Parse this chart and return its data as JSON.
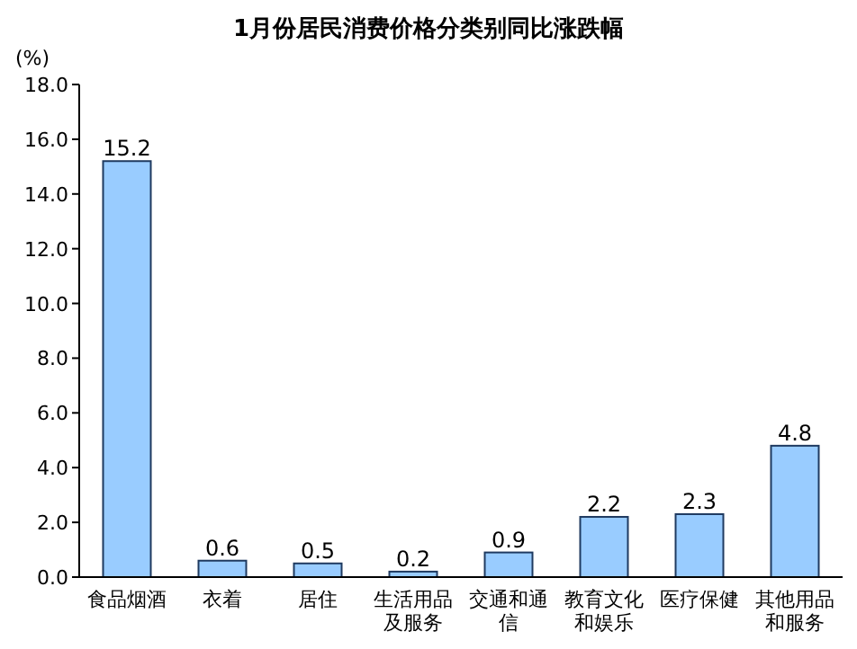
{
  "chart_data": {
    "type": "bar",
    "title": "1月份居民消费价格分类别同比涨跌幅",
    "ylabel": "(%)",
    "categories": [
      "食品烟酒",
      "衣着",
      "居住",
      "生活用品及服务",
      "交通和通信",
      "教育文化和娱乐",
      "医疗保健",
      "其他用品和服务"
    ],
    "values": [
      15.2,
      0.6,
      0.5,
      0.2,
      0.9,
      2.2,
      2.3,
      4.8
    ],
    "color": "#99ccff",
    "ylim": [
      0,
      18
    ],
    "yticks": [
      {
        "value": 0,
        "label": "0.0"
      },
      {
        "value": 2,
        "label": "2.0"
      },
      {
        "value": 4,
        "label": "4.0"
      },
      {
        "value": 6,
        "label": "6.0"
      },
      {
        "value": 8,
        "label": "8.0"
      },
      {
        "value": 10,
        "label": "10.0"
      },
      {
        "value": 12,
        "label": "12.0"
      },
      {
        "value": 14,
        "label": "14.0"
      },
      {
        "value": 16,
        "label": "16.0"
      },
      {
        "value": 18,
        "label": "18.0"
      }
    ],
    "data_labels": true
  }
}
